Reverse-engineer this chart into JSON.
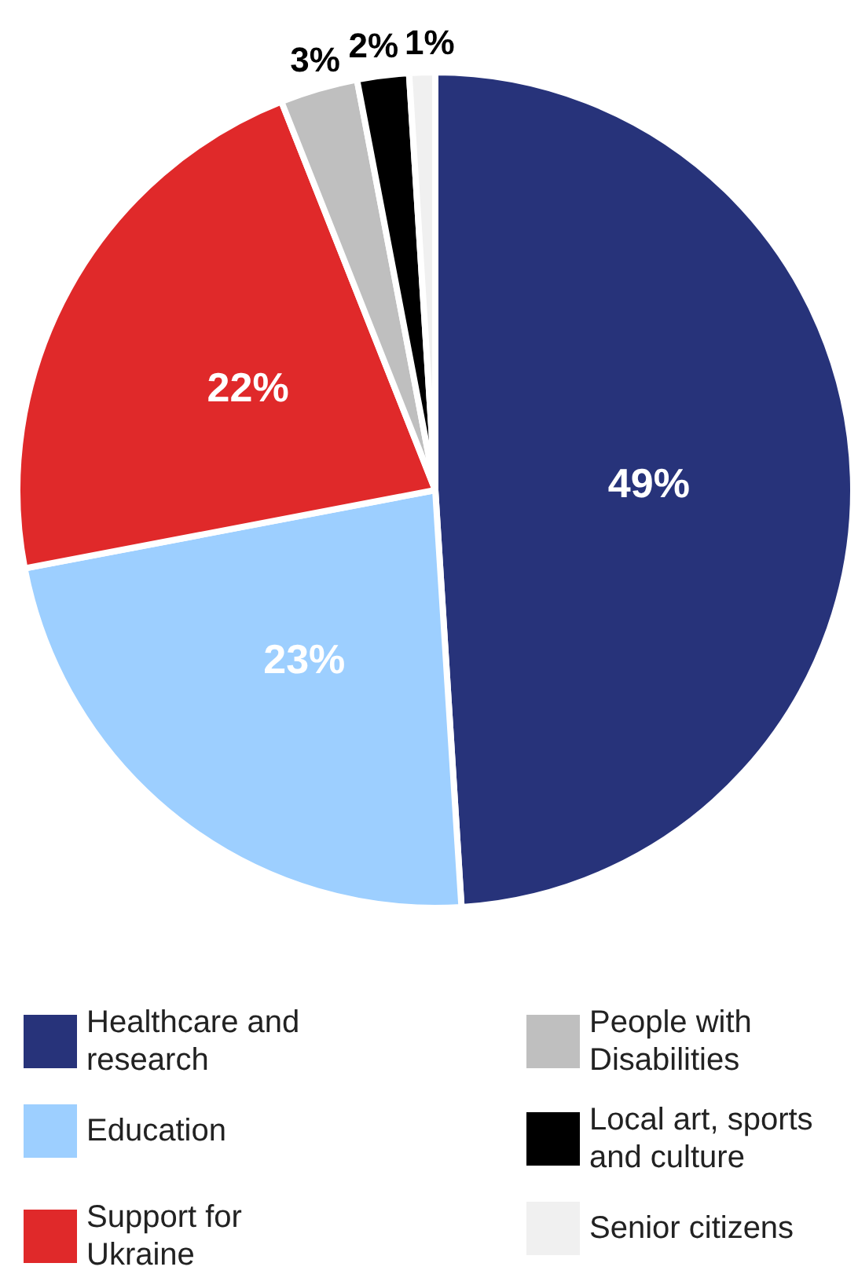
{
  "chart_data": {
    "type": "pie",
    "categories": [
      "Healthcare and research",
      "Education",
      "Support for Ukraine",
      "People with Disabilities",
      "Local art, sports and culture",
      "Senior citizens"
    ],
    "values": [
      49,
      23,
      22,
      3,
      2,
      1
    ],
    "value_labels": [
      "49%",
      "23%",
      "22%",
      "3%",
      "2%",
      "1%"
    ],
    "colors": [
      "#27337a",
      "#9dcfff",
      "#e0292a",
      "#bfbfbf",
      "#000000",
      "#f0f0f0"
    ],
    "legend": "bottom"
  }
}
